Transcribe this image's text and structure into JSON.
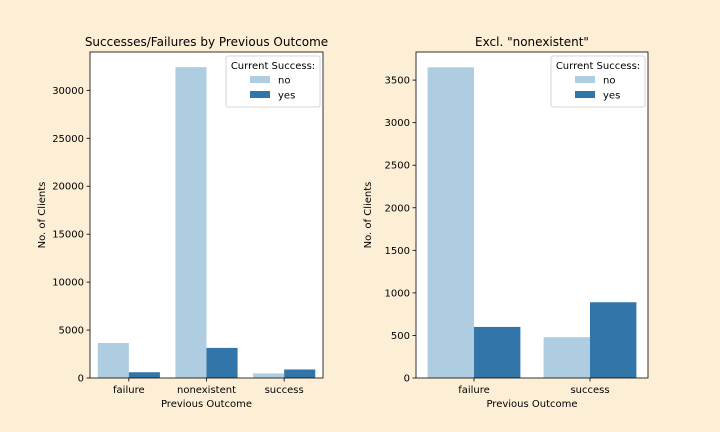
{
  "chart_data": [
    {
      "type": "bar",
      "title": "Successes/Failures by Previous Outcome",
      "xlabel": "Previous Outcome",
      "ylabel": "No. of Clients",
      "categories": [
        "failure",
        "nonexistent",
        "success"
      ],
      "series": [
        {
          "name": "no",
          "values": [
            3650,
            32420,
            480
          ]
        },
        {
          "name": "yes",
          "values": [
            600,
            3140,
            890
          ]
        }
      ],
      "ylim": [
        0,
        34000
      ],
      "yticks": [
        0,
        5000,
        10000,
        15000,
        20000,
        25000,
        30000
      ],
      "legend": {
        "title": "Current Success:",
        "placement": "top-right"
      },
      "colors": {
        "no": "#afcde1",
        "yes": "#3275a8"
      },
      "grid": false
    },
    {
      "type": "bar",
      "title": "Excl. \"nonexistent\"",
      "xlabel": "Previous Outcome",
      "ylabel": "No. of Clients",
      "categories": [
        "failure",
        "success"
      ],
      "series": [
        {
          "name": "no",
          "values": [
            3650,
            480
          ]
        },
        {
          "name": "yes",
          "values": [
            600,
            890
          ]
        }
      ],
      "ylim": [
        0,
        3830
      ],
      "yticks": [
        0,
        500,
        1000,
        1500,
        2000,
        2500,
        3000,
        3500
      ],
      "legend": {
        "title": "Current Success:",
        "placement": "top-right"
      },
      "colors": {
        "no": "#afcde1",
        "yes": "#3275a8"
      },
      "grid": false
    }
  ]
}
